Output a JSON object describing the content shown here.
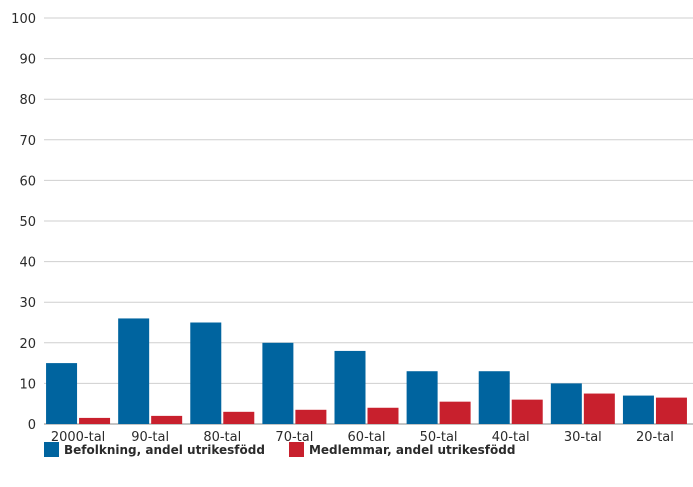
{
  "chart_data": {
    "type": "bar",
    "categories": [
      "2000-tal",
      "90-tal",
      "80-tal",
      "70-tal",
      "60-tal",
      "50-tal",
      "40-tal",
      "30-tal",
      "20-tal"
    ],
    "series": [
      {
        "name": "Befolkning, andel utrikesfödd",
        "color": "#00649f",
        "values": [
          15,
          26,
          25,
          20,
          18,
          13,
          13,
          10,
          7
        ]
      },
      {
        "name": "Medlemmar, andel utrikesfödd",
        "color": "#c8202d",
        "values": [
          1.5,
          2,
          3,
          3.5,
          4,
          5.5,
          6,
          7.5,
          6.5
        ]
      }
    ],
    "ylim": [
      0,
      100
    ],
    "yticks": [
      0,
      10,
      20,
      30,
      40,
      50,
      60,
      70,
      80,
      90,
      100
    ],
    "grid": true,
    "legend_position": "bottom-left"
  }
}
